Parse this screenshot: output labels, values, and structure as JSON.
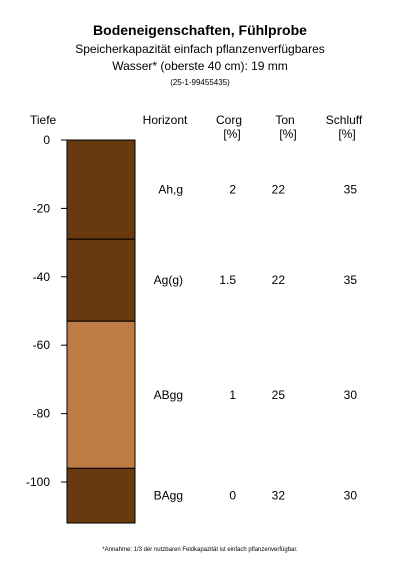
{
  "header": {
    "title": "Bodeneigenschaften, Fühlprobe",
    "subtitle_line1": "Speicherkapazität einfach pflanzenverfügbares",
    "subtitle_line2": "Wasser* (oberste 40 cm): 19 mm",
    "sample_id": "(25-1-99455435)"
  },
  "chart_data": {
    "type": "table",
    "depth_label": "Tiefe",
    "depth_axis": {
      "range": [
        0,
        -112
      ],
      "ticks": [
        0,
        -20,
        -40,
        -60,
        -80,
        -100
      ]
    },
    "columns": [
      {
        "key": "horizon",
        "label": "Horizont",
        "unit": ""
      },
      {
        "key": "corg",
        "label": "Corg",
        "unit": "[%]"
      },
      {
        "key": "ton",
        "label": "Ton",
        "unit": "[%]"
      },
      {
        "key": "schluff",
        "label": "Schluff",
        "unit": "[%]"
      }
    ],
    "layers": [
      {
        "horizon": "Ah,g",
        "top": 0,
        "bottom": -29,
        "corg": "2",
        "ton": "22",
        "schluff": "35",
        "color": "#693A10"
      },
      {
        "horizon": "Ag(g)",
        "top": -29,
        "bottom": -53,
        "corg": "1.5",
        "ton": "22",
        "schluff": "35",
        "color": "#693A10"
      },
      {
        "horizon": "ABgg",
        "top": -53,
        "bottom": -96,
        "corg": "1",
        "ton": "25",
        "schluff": "30",
        "color": "#C07C45"
      },
      {
        "horizon": "BAgg",
        "top": -96,
        "bottom": -112,
        "corg": "0",
        "ton": "32",
        "schluff": "30",
        "color": "#693A10"
      }
    ]
  },
  "footnote": "*Annahme: 1/3 der nutzbaren Feldkapazität ist einfach pflanzenverfügbar."
}
